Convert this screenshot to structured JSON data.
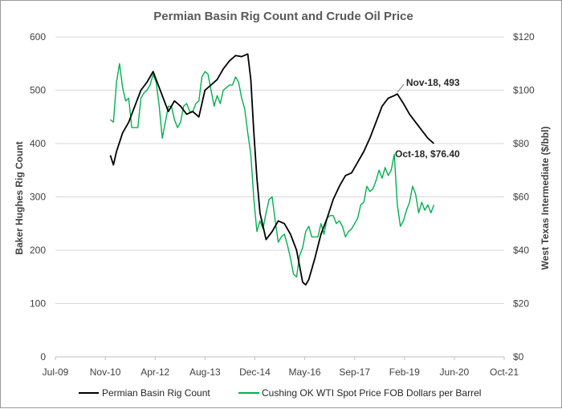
{
  "chart_data": {
    "type": "line",
    "title": "Permian Basin Rig Count and Crude Oil Price",
    "ylabel": "Baker Hughes Rig Count",
    "y2label": "West Texas Intermediate ($/bbl)",
    "ylim": [
      0,
      600
    ],
    "y2lim": [
      0,
      120
    ],
    "xlim": [
      "2009-07",
      "2021-10"
    ],
    "x_ticks": [
      "Jul-09",
      "Nov-10",
      "Apr-12",
      "Aug-13",
      "Dec-14",
      "May-16",
      "Sep-17",
      "Feb-19",
      "Jun-20",
      "Oct-21"
    ],
    "y_ticks": [
      "0",
      "100",
      "200",
      "300",
      "400",
      "500",
      "600"
    ],
    "y2_ticks": [
      "$0",
      "$20",
      "$40",
      "$60",
      "$80",
      "$100",
      "$120"
    ],
    "grid": "horizontal",
    "legend_position": "bottom",
    "series": [
      {
        "name": "Permian Basin Rig Count",
        "axis": "left",
        "color": "#000000",
        "x": [
          "2011-01",
          "2011-02",
          "2011-03",
          "2011-05",
          "2011-07",
          "2011-09",
          "2011-11",
          "2012-01",
          "2012-03",
          "2012-04",
          "2012-06",
          "2012-08",
          "2012-10",
          "2012-12",
          "2013-02",
          "2013-04",
          "2013-06",
          "2013-08",
          "2013-10",
          "2013-12",
          "2014-02",
          "2014-04",
          "2014-06",
          "2014-08",
          "2014-10",
          "2014-11",
          "2014-12",
          "2015-01",
          "2015-02",
          "2015-03",
          "2015-04",
          "2015-06",
          "2015-08",
          "2015-10",
          "2015-12",
          "2016-02",
          "2016-03",
          "2016-04",
          "2016-05",
          "2016-06",
          "2016-08",
          "2016-10",
          "2016-12",
          "2017-02",
          "2017-04",
          "2017-06",
          "2017-08",
          "2017-10",
          "2017-12",
          "2018-02",
          "2018-04",
          "2018-06",
          "2018-08",
          "2018-10",
          "2018-11",
          "2019-01",
          "2019-03",
          "2019-05",
          "2019-07",
          "2019-09",
          "2019-11"
        ],
        "values": [
          378,
          360,
          385,
          420,
          440,
          470,
          500,
          515,
          535,
          520,
          490,
          460,
          480,
          470,
          455,
          460,
          450,
          500,
          510,
          520,
          540,
          555,
          565,
          563,
          568,
          520,
          420,
          335,
          270,
          245,
          220,
          235,
          255,
          250,
          230,
          200,
          170,
          140,
          135,
          145,
          185,
          230,
          260,
          295,
          320,
          340,
          345,
          365,
          385,
          410,
          440,
          470,
          485,
          490,
          493,
          475,
          455,
          440,
          425,
          410,
          400
        ]
      },
      {
        "name": "Cushing OK WTI Spot Price FOB  Dollars per Barrel",
        "axis": "right",
        "color": "#00b050",
        "x": [
          "2011-01",
          "2011-02",
          "2011-03",
          "2011-04",
          "2011-05",
          "2011-06",
          "2011-07",
          "2011-08",
          "2011-09",
          "2011-10",
          "2011-11",
          "2011-12",
          "2012-01",
          "2012-02",
          "2012-03",
          "2012-04",
          "2012-05",
          "2012-06",
          "2012-07",
          "2012-08",
          "2012-09",
          "2012-10",
          "2012-11",
          "2012-12",
          "2013-01",
          "2013-02",
          "2013-03",
          "2013-04",
          "2013-05",
          "2013-06",
          "2013-07",
          "2013-08",
          "2013-09",
          "2013-10",
          "2013-11",
          "2013-12",
          "2014-01",
          "2014-02",
          "2014-03",
          "2014-04",
          "2014-05",
          "2014-06",
          "2014-07",
          "2014-08",
          "2014-09",
          "2014-10",
          "2014-11",
          "2014-12",
          "2015-01",
          "2015-02",
          "2015-03",
          "2015-04",
          "2015-05",
          "2015-06",
          "2015-07",
          "2015-08",
          "2015-09",
          "2015-10",
          "2015-11",
          "2015-12",
          "2016-01",
          "2016-02",
          "2016-03",
          "2016-04",
          "2016-05",
          "2016-06",
          "2016-07",
          "2016-08",
          "2016-09",
          "2016-10",
          "2016-11",
          "2016-12",
          "2017-01",
          "2017-02",
          "2017-03",
          "2017-04",
          "2017-05",
          "2017-06",
          "2017-07",
          "2017-08",
          "2017-09",
          "2017-10",
          "2017-11",
          "2017-12",
          "2018-01",
          "2018-02",
          "2018-03",
          "2018-04",
          "2018-05",
          "2018-06",
          "2018-07",
          "2018-08",
          "2018-09",
          "2018-10",
          "2018-11",
          "2018-12",
          "2019-01",
          "2019-02",
          "2019-03",
          "2019-04",
          "2019-05",
          "2019-06",
          "2019-07",
          "2019-08",
          "2019-09",
          "2019-10",
          "2019-11"
        ],
        "values": [
          89,
          88,
          103,
          110,
          101,
          96,
          97,
          86,
          86,
          86,
          97,
          99,
          100,
          102,
          106,
          103,
          94,
          82,
          88,
          94,
          94,
          89,
          86,
          88,
          94,
          95,
          92,
          92,
          95,
          96,
          105,
          107,
          106,
          100,
          94,
          98,
          95,
          100,
          101,
          102,
          102,
          105,
          103,
          97,
          93,
          84,
          76,
          59,
          47,
          51,
          48,
          54,
          59,
          60,
          51,
          43,
          45,
          46,
          42,
          37,
          31,
          30,
          38,
          41,
          47,
          49,
          45,
          45,
          45,
          50,
          46,
          52,
          53,
          53,
          50,
          51,
          49,
          45,
          47,
          48,
          50,
          52,
          57,
          58,
          64,
          62,
          63,
          66,
          70,
          67,
          71,
          68,
          70,
          76,
          57,
          49,
          51,
          55,
          58,
          64,
          61,
          54,
          58,
          55,
          57,
          54,
          57
        ]
      }
    ],
    "annotations": [
      {
        "text": "Nov-18, 493"
      },
      {
        "text": "Oct-18,  $76.40"
      }
    ]
  }
}
